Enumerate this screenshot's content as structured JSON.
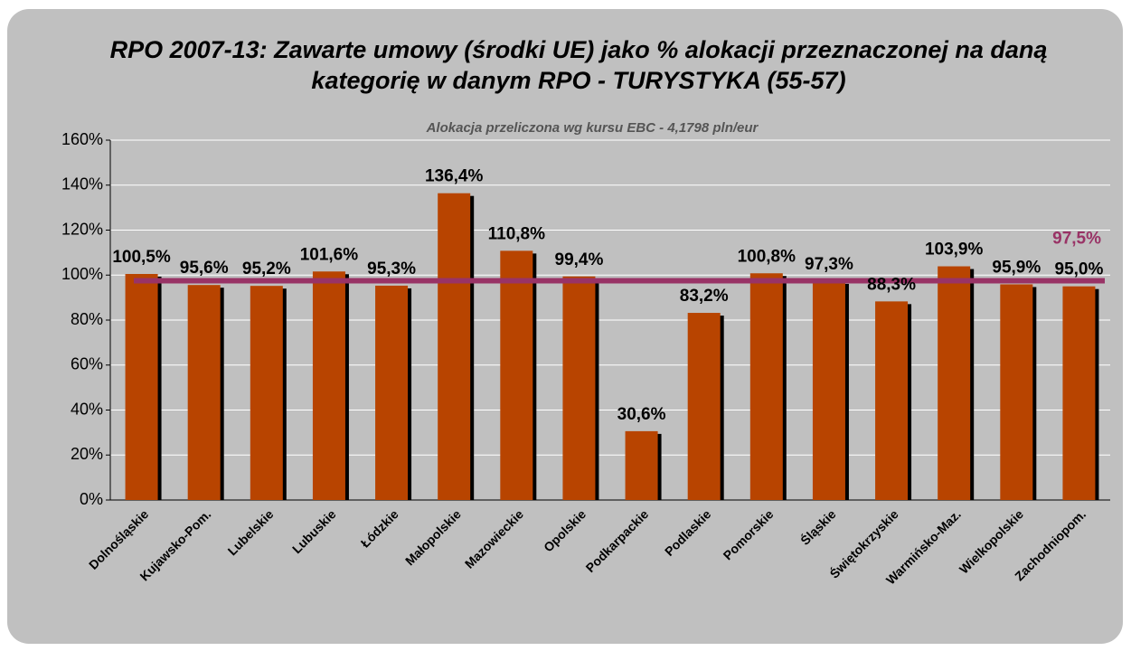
{
  "chart_data": {
    "type": "bar",
    "title": [
      "RPO 2007-13: Zawarte umowy (środki UE) jako % alokacji przeznaczonej na daną",
      "kategorię w danym RPO - TURYSTYKA (55-57)"
    ],
    "subtitle": "Alokacja przeliczona wg kursu EBC - 4,1798 pln/eur",
    "categories": [
      "Dolnośląskie",
      "Kujawsko-Pom.",
      "Lubelskie",
      "Lubuskie",
      "Łódzkie",
      "Małopolskie",
      "Mazowieckie",
      "Opolskie",
      "Podkarpackie",
      "Podlaskie",
      "Pomorskie",
      "Śląskie",
      "Świętokrzyskie",
      "Warmińsko-Maz.",
      "Wielkopolskie",
      "Zachodniopom."
    ],
    "values": [
      100.5,
      95.6,
      95.2,
      101.6,
      95.3,
      136.4,
      110.8,
      99.4,
      30.6,
      83.2,
      100.8,
      97.3,
      88.3,
      103.9,
      95.9,
      95.0
    ],
    "value_labels": [
      "100,5%",
      "95,6%",
      "95,2%",
      "101,6%",
      "95,3%",
      "136,4%",
      "110,8%",
      "99,4%",
      "30,6%",
      "83,2%",
      "100,8%",
      "97,3%",
      "88,3%",
      "103,9%",
      "95,9%",
      "95,0%"
    ],
    "color": "#b84400",
    "ylim": [
      0,
      160
    ],
    "yticks": [
      {
        "value": 0,
        "label": "0%"
      },
      {
        "value": 20,
        "label": "20%"
      },
      {
        "value": 40,
        "label": "40%"
      },
      {
        "value": 60,
        "label": "60%"
      },
      {
        "value": 80,
        "label": "80%"
      },
      {
        "value": 100,
        "label": "100%"
      },
      {
        "value": 120,
        "label": "120%"
      },
      {
        "value": 140,
        "label": "140%"
      },
      {
        "value": 160,
        "label": "160%"
      }
    ],
    "grid": true,
    "reference_line": {
      "value": 97.5,
      "label": "97,5%",
      "color": "#993366"
    }
  }
}
